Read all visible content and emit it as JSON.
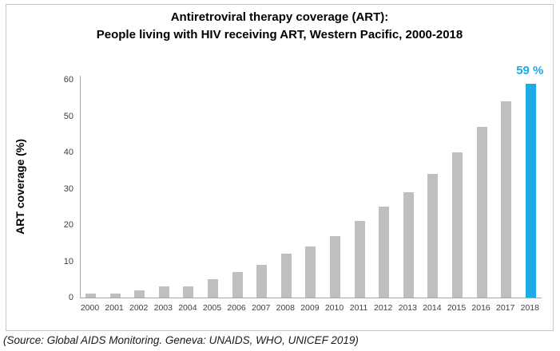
{
  "figure": {
    "title_line1": "Antiretroviral therapy coverage (ART):",
    "title_line2": "People living with HIV receiving ART, Western Pacific, 2000-2018",
    "source": "(Source: Global AIDS Monitoring. Geneva: UNAIDS, WHO, UNICEF 2019)"
  },
  "chart_data": {
    "type": "bar",
    "title": "Antiretroviral therapy coverage (ART): People living with HIV receiving ART, Western Pacific, 2000-2018",
    "categories": [
      "2000",
      "2001",
      "2002",
      "2003",
      "2004",
      "2005",
      "2006",
      "2007",
      "2008",
      "2009",
      "2010",
      "2011",
      "2012",
      "2013",
      "2014",
      "2015",
      "2016",
      "2017",
      "2018"
    ],
    "values": [
      1,
      1,
      2,
      3,
      3,
      5,
      7,
      9,
      12,
      14,
      17,
      21,
      25,
      29,
      34,
      40,
      47,
      54,
      59
    ],
    "xlabel": "",
    "ylabel": "ART coverage (%)",
    "ylim": [
      0,
      60
    ],
    "yticks": [
      0,
      10,
      20,
      30,
      40,
      50,
      60
    ],
    "grid": false,
    "legend": "none",
    "highlight": {
      "category": "2018",
      "label": "59 %"
    },
    "colors": {
      "bar_default": "#BFBFBF",
      "bar_highlight": "#1CABE2",
      "annotation_text": "#1CABE2",
      "axis_line": "#A6A6A6",
      "tick_text": "#404040",
      "frame_border": "#C6C6C6"
    }
  }
}
